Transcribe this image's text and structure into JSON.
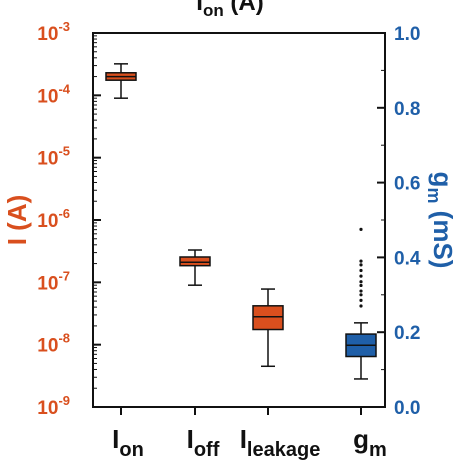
{
  "chart_data": {
    "type": "box",
    "title": {
      "main": "I",
      "sub": "on",
      "unit": " (A)"
    },
    "left_axis": {
      "label": "I (A)",
      "scale": "log",
      "range": [
        1e-09,
        0.001
      ],
      "ticks": [
        {
          "base": "10",
          "exp": "-3",
          "value": 0.001
        },
        {
          "base": "10",
          "exp": "-4",
          "value": 0.0001
        },
        {
          "base": "10",
          "exp": "-5",
          "value": 1e-05
        },
        {
          "base": "10",
          "exp": "-6",
          "value": 1e-06
        },
        {
          "base": "10",
          "exp": "-7",
          "value": 1e-07
        },
        {
          "base": "10",
          "exp": "-8",
          "value": 1e-08
        },
        {
          "base": "10",
          "exp": "-9",
          "value": 1e-09
        }
      ],
      "color": "#d94f1e"
    },
    "right_axis": {
      "label": {
        "main": "g",
        "sub": "m",
        "unit": " (mS)"
      },
      "scale": "linear",
      "range": [
        0.0,
        1.0
      ],
      "ticks": [
        "0.0",
        "0.2",
        "0.4",
        "0.6",
        "0.8",
        "1.0"
      ],
      "color": "#1f5fa8"
    },
    "categories": [
      {
        "main": "I",
        "sub": "on"
      },
      {
        "main": "I",
        "sub": "off"
      },
      {
        "main": "I",
        "sub": "leakage"
      },
      {
        "main": "g",
        "sub": "m"
      }
    ],
    "boxes": [
      {
        "category": "I_on",
        "axis": "left",
        "min": 9e-05,
        "q1": 0.000175,
        "median": 0.0002,
        "q3": 0.00023,
        "max": 0.00032,
        "outliers": []
      },
      {
        "category": "I_off",
        "axis": "left",
        "min": 9e-08,
        "q1": 1.85e-07,
        "median": 2.1e-07,
        "q3": 2.55e-07,
        "max": 3.3e-07,
        "outliers": []
      },
      {
        "category": "I_leakage",
        "axis": "left",
        "min": 4.5e-09,
        "q1": 1.75e-08,
        "median": 2.8e-08,
        "q3": 4.2e-08,
        "max": 7.8e-08,
        "outliers": []
      },
      {
        "category": "g_m",
        "axis": "right",
        "min": 0.075,
        "q1": 0.135,
        "median": 0.165,
        "q3": 0.195,
        "max": 0.225,
        "outliers": [
          0.27,
          0.285,
          0.3,
          0.31,
          0.325,
          0.335,
          0.35,
          0.365,
          0.38,
          0.39,
          0.475
        ]
      }
    ],
    "colors": {
      "red_box": "#d94f1e",
      "blue_box": "#1f5fa8",
      "line": "#111111"
    }
  }
}
